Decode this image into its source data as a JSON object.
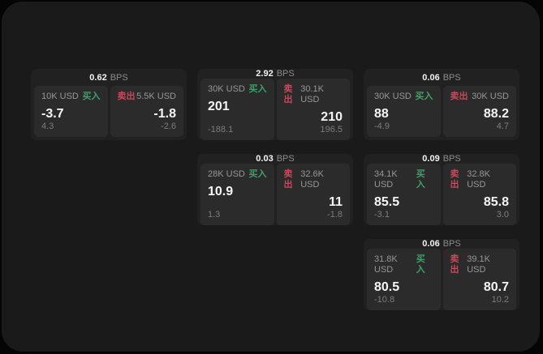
{
  "labels": {
    "bps": "BPS",
    "buy": "买入",
    "sell": "卖出"
  },
  "colors": {
    "window_bg": "#1a1a1a",
    "card_bg": "#212121",
    "panel_bg": "#2b2b2b",
    "buy_green": "#3fa06a",
    "sell_red": "#c9485b"
  },
  "cards": [
    {
      "bps": "0.62",
      "buy": {
        "amount": "10K USD",
        "price": "-3.7",
        "delta": "4.3"
      },
      "sell": {
        "amount": "5.5K USD",
        "price": "-1.8",
        "delta": "-2.6"
      }
    },
    {
      "bps": "2.92",
      "buy": {
        "amount": "30K USD",
        "price": "201",
        "delta": "-188.1"
      },
      "sell": {
        "amount": "30.1K USD",
        "price": "210",
        "delta": "196.5"
      }
    },
    {
      "bps": "0.06",
      "buy": {
        "amount": "30K USD",
        "price": "88",
        "delta": "-4.9"
      },
      "sell": {
        "amount": "30K USD",
        "price": "88.2",
        "delta": "4.7"
      }
    },
    {
      "bps": "0.03",
      "buy": {
        "amount": "28K USD",
        "price": "10.9",
        "delta": "1.3"
      },
      "sell": {
        "amount": "32.6K USD",
        "price": "11",
        "delta": "-1.8"
      }
    },
    {
      "bps": "0.09",
      "buy": {
        "amount": "34.1K USD",
        "price": "85.5",
        "delta": "-3.1"
      },
      "sell": {
        "amount": "32.8K USD",
        "price": "85.8",
        "delta": "3.0"
      }
    },
    {
      "bps": "0.06",
      "buy": {
        "amount": "31.8K USD",
        "price": "80.5",
        "delta": "-10.8"
      },
      "sell": {
        "amount": "39.1K USD",
        "price": "80.7",
        "delta": "10.2"
      }
    }
  ]
}
